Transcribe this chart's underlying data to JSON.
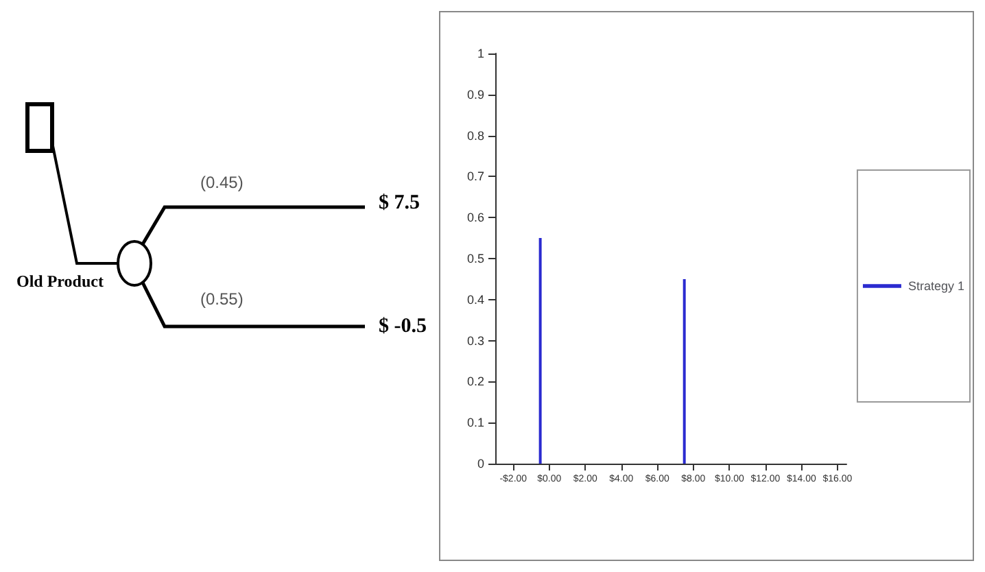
{
  "chart_data": {
    "type": "bar",
    "x": [
      -0.5,
      7.5
    ],
    "series": [
      {
        "name": "Strategy 1",
        "color": "#2b2bd0",
        "values": [
          0.55,
          0.45
        ]
      }
    ],
    "xlim": [
      -3,
      16.5
    ],
    "xticks": [
      {
        "value": -2,
        "label": "-$2.00"
      },
      {
        "value": 0,
        "label": "$0.00"
      },
      {
        "value": 2,
        "label": "$2.00"
      },
      {
        "value": 4,
        "label": "$4.00"
      },
      {
        "value": 6,
        "label": "$6.00"
      },
      {
        "value": 8,
        "label": "$8.00"
      },
      {
        "value": 10,
        "label": "$10.00"
      },
      {
        "value": 12,
        "label": "$12.00"
      },
      {
        "value": 14,
        "label": "$14.00"
      },
      {
        "value": 16,
        "label": "$16.00"
      }
    ],
    "ylim": [
      0,
      1
    ],
    "yticks": [
      0,
      0.1,
      0.2,
      0.3,
      0.4,
      0.5,
      0.6,
      0.7,
      0.8,
      0.9,
      1
    ],
    "grid": false,
    "legend": "right",
    "annotations": [
      "Old Product",
      "(0.45)",
      "(0.55)",
      "$ 7.5",
      "$ -0.5"
    ]
  }
}
